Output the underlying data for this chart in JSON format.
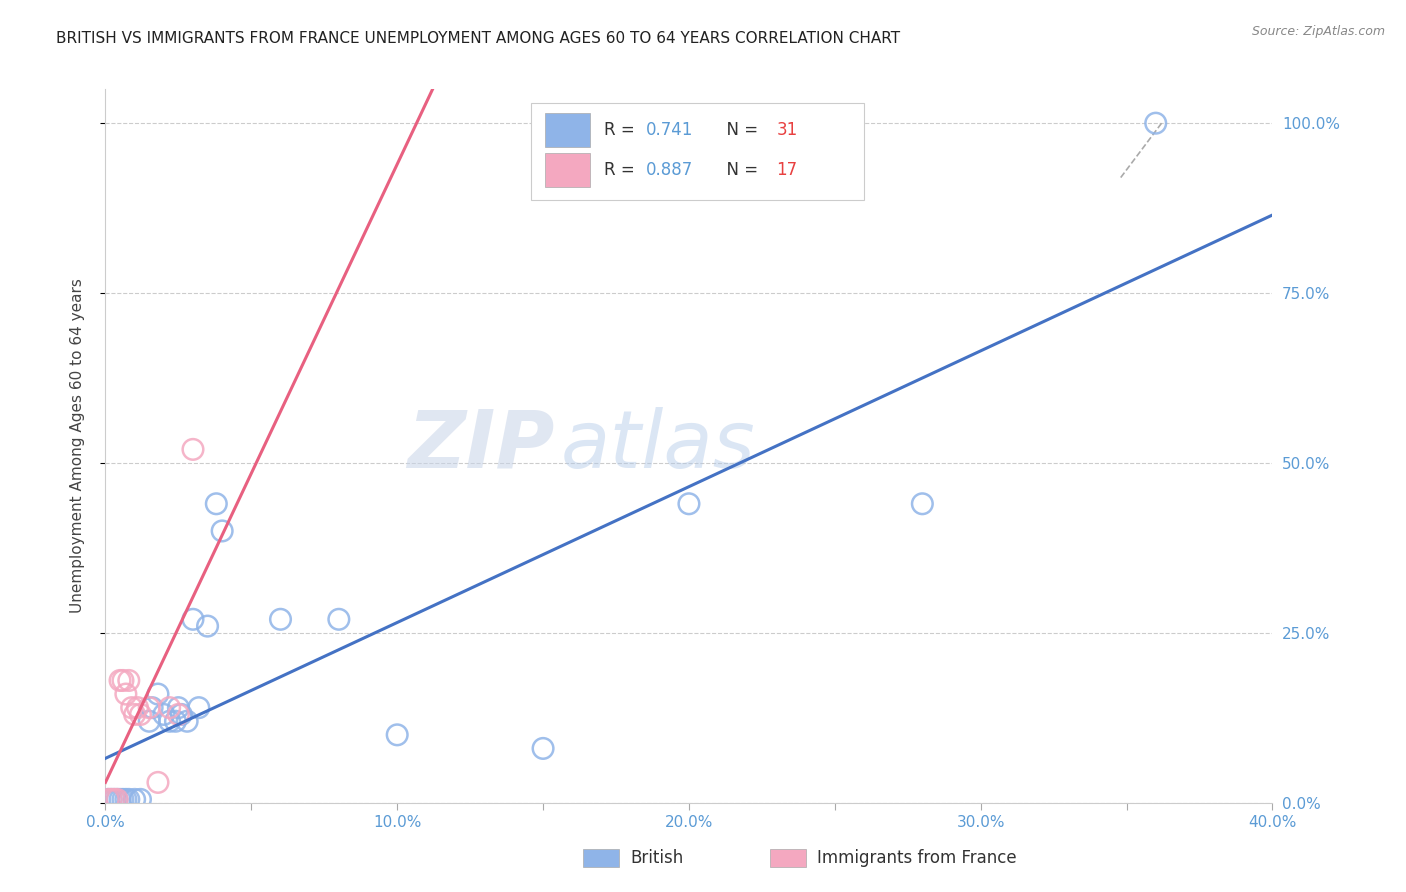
{
  "title": "BRITISH VS IMMIGRANTS FROM FRANCE UNEMPLOYMENT AMONG AGES 60 TO 64 YEARS CORRELATION CHART",
  "source": "Source: ZipAtlas.com",
  "ylabel": "Unemployment Among Ages 60 to 64 years",
  "xlim": [
    0.0,
    0.4
  ],
  "ylim": [
    0.0,
    1.05
  ],
  "xticks": [
    0.0,
    0.05,
    0.1,
    0.15,
    0.2,
    0.25,
    0.3,
    0.35,
    0.4
  ],
  "xticklabels": [
    "0.0%",
    "",
    "10.0%",
    "",
    "20.0%",
    "",
    "30.0%",
    "",
    "40.0%"
  ],
  "yticks": [
    0.0,
    0.25,
    0.5,
    0.75,
    1.0
  ],
  "yticklabels": [
    "0.0%",
    "25.0%",
    "50.0%",
    "75.0%",
    "100.0%"
  ],
  "british_color": "#8fb4e8",
  "france_color": "#f4a8c0",
  "british_line_color": "#4472C4",
  "france_line_color": "#E86080",
  "legend_label_british": "British",
  "legend_label_france": "Immigrants from France",
  "watermark": "ZIPatlas",
  "r_n_color": "#5b9bd5",
  "n_val_color": "#e84040",
  "grid_color": "#cccccc",
  "tick_color": "#5b9bd5",
  "british_points": [
    [
      0.001,
      0.005
    ],
    [
      0.002,
      0.005
    ],
    [
      0.003,
      0.005
    ],
    [
      0.004,
      0.005
    ],
    [
      0.005,
      0.005
    ],
    [
      0.006,
      0.005
    ],
    [
      0.007,
      0.005
    ],
    [
      0.008,
      0.005
    ],
    [
      0.01,
      0.005
    ],
    [
      0.012,
      0.005
    ],
    [
      0.015,
      0.12
    ],
    [
      0.016,
      0.14
    ],
    [
      0.018,
      0.16
    ],
    [
      0.02,
      0.13
    ],
    [
      0.022,
      0.12
    ],
    [
      0.024,
      0.12
    ],
    [
      0.025,
      0.14
    ],
    [
      0.026,
      0.13
    ],
    [
      0.028,
      0.12
    ],
    [
      0.03,
      0.27
    ],
    [
      0.032,
      0.14
    ],
    [
      0.035,
      0.26
    ],
    [
      0.038,
      0.44
    ],
    [
      0.04,
      0.4
    ],
    [
      0.06,
      0.27
    ],
    [
      0.08,
      0.27
    ],
    [
      0.1,
      0.1
    ],
    [
      0.15,
      0.08
    ],
    [
      0.2,
      0.44
    ],
    [
      0.28,
      0.44
    ],
    [
      0.36,
      1.0
    ]
  ],
  "france_points": [
    [
      0.001,
      0.005
    ],
    [
      0.002,
      0.005
    ],
    [
      0.003,
      0.005
    ],
    [
      0.004,
      0.005
    ],
    [
      0.005,
      0.18
    ],
    [
      0.006,
      0.18
    ],
    [
      0.007,
      0.16
    ],
    [
      0.008,
      0.18
    ],
    [
      0.009,
      0.14
    ],
    [
      0.01,
      0.13
    ],
    [
      0.011,
      0.14
    ],
    [
      0.012,
      0.13
    ],
    [
      0.015,
      0.14
    ],
    [
      0.018,
      0.03
    ],
    [
      0.022,
      0.14
    ],
    [
      0.025,
      0.13
    ],
    [
      0.03,
      0.52
    ]
  ],
  "british_trend_x": [
    0.0,
    0.4
  ],
  "france_trend_x": [
    0.0,
    0.135
  ]
}
